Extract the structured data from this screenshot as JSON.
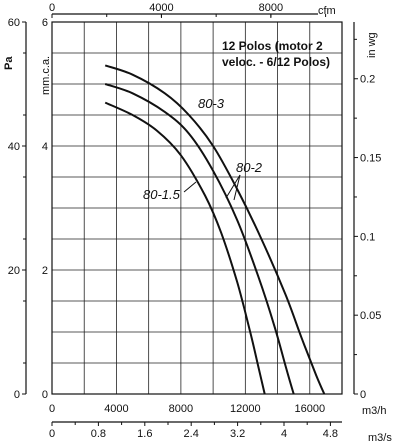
{
  "chart_data": {
    "type": "line",
    "title": "",
    "note_lines": [
      "12 Polos (motor 2",
      "veloc. - 6/12 Polos)"
    ],
    "x_axis": {
      "label": "m3/h",
      "range": [
        0,
        18000
      ],
      "ticks": [
        0,
        4000,
        8000,
        12000,
        16000
      ],
      "tick_labels": [
        "0",
        "4000",
        "8000",
        "12000",
        "16000"
      ]
    },
    "x_axis_m3s": {
      "label": "m3/s",
      "range": [
        0,
        5
      ],
      "ticks": [
        0,
        0.8,
        1.6,
        2.4,
        3.2,
        4,
        4.8
      ],
      "tick_labels": [
        "0",
        "0.8",
        "1.6",
        "2.4",
        "3.2",
        "4",
        "4.8"
      ]
    },
    "x_axis_top": {
      "label": "cfm",
      "range": [
        0,
        10600
      ],
      "ticks": [
        0,
        4000,
        8000
      ],
      "tick_labels": [
        "0",
        "4000",
        "8000"
      ]
    },
    "y_axis_pa": {
      "label": "Pa",
      "range": [
        0,
        60
      ],
      "ticks": [
        0,
        20,
        40,
        60
      ],
      "tick_labels": [
        "0",
        "20",
        "40",
        "60"
      ]
    },
    "y_axis_mmca": {
      "label": "mm.c.a.",
      "range": [
        0,
        6
      ],
      "ticks": [
        0,
        2,
        4,
        6
      ],
      "tick_labels": [
        "0",
        "2",
        "4",
        "6"
      ]
    },
    "y_axis_inwg": {
      "label": "in wg",
      "range": [
        0,
        0.236
      ],
      "ticks": [
        0,
        0.05,
        0.1,
        0.15,
        0.2
      ],
      "tick_labels": [
        "0",
        "0.05",
        "0.1",
        "0.15",
        "0.2"
      ]
    },
    "grid": true,
    "series": [
      {
        "name": "80-3",
        "x": [
          3300,
          5000,
          7000,
          8500,
          10000,
          11500,
          13000,
          14500,
          15500,
          16400,
          16900
        ],
        "y": [
          5.3,
          5.15,
          4.85,
          4.5,
          4.0,
          3.3,
          2.5,
          1.6,
          0.9,
          0.3,
          0
        ]
      },
      {
        "name": "80-2",
        "x": [
          3300,
          5000,
          7000,
          8500,
          10000,
          11500,
          12800,
          13800,
          14500,
          15000
        ],
        "y": [
          5.0,
          4.85,
          4.55,
          4.2,
          3.6,
          2.8,
          1.9,
          1.1,
          0.45,
          0
        ]
      },
      {
        "name": "80-1.5",
        "x": [
          3300,
          5000,
          6500,
          8000,
          9500,
          10500,
          11500,
          12300,
          12800,
          13200
        ],
        "y": [
          4.7,
          4.5,
          4.25,
          3.85,
          3.2,
          2.6,
          1.8,
          1.0,
          0.45,
          0
        ]
      }
    ]
  }
}
